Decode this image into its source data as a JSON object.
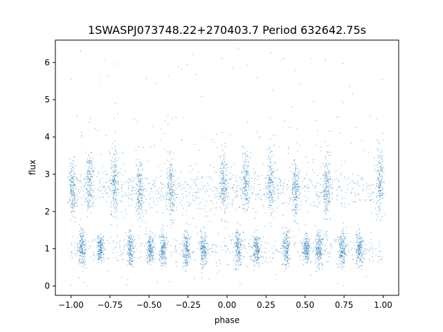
{
  "chart_data": {
    "type": "scatter",
    "title": "1SWASPJ073748.22+270403.7 Period 632642.75s",
    "xlabel": "phase",
    "ylabel": "flux",
    "xlim": [
      -1.1,
      1.1
    ],
    "ylim": [
      -0.25,
      6.6
    ],
    "x_ticks": [
      -1.0,
      -0.75,
      -0.5,
      -0.25,
      0.0,
      0.25,
      0.5,
      0.75,
      1.0
    ],
    "x_tick_labels": [
      "−1.00",
      "−0.75",
      "−0.50",
      "−0.25",
      "0.00",
      "0.25",
      "0.50",
      "0.75",
      "1.00"
    ],
    "y_ticks": [
      0,
      1,
      2,
      3,
      4,
      5,
      6
    ],
    "y_tick_labels": [
      "0",
      "1",
      "2",
      "3",
      "4",
      "5",
      "6"
    ],
    "grid": false,
    "legend": "none",
    "marker_color": "#1f77b4",
    "marker": "point",
    "phase_range": [
      -1.0,
      1.0
    ],
    "note_symmetry": "second half repeats first half shifted by 1.0 in phase",
    "series": [
      {
        "name": "",
        "clusters": [
          {
            "x": -0.99,
            "y": 2.6,
            "spread_y": 0.35
          },
          {
            "x": -0.93,
            "y": 1.0,
            "spread_y": 0.25
          },
          {
            "x": -0.88,
            "y": 2.8,
            "spread_y": 0.4
          },
          {
            "x": -0.81,
            "y": 1.0,
            "spread_y": 0.2
          },
          {
            "x": -0.72,
            "y": 2.8,
            "spread_y": 0.45
          },
          {
            "x": -0.62,
            "y": 1.0,
            "spread_y": 0.25
          },
          {
            "x": -0.56,
            "y": 2.6,
            "spread_y": 0.4
          },
          {
            "x": -0.49,
            "y": 1.0,
            "spread_y": 0.2
          },
          {
            "x": -0.41,
            "y": 1.0,
            "spread_y": 0.25
          },
          {
            "x": -0.36,
            "y": 2.6,
            "spread_y": 0.45
          },
          {
            "x": -0.26,
            "y": 1.0,
            "spread_y": 0.25
          },
          {
            "x": -0.15,
            "y": 1.0,
            "spread_y": 0.25
          },
          {
            "x": -0.02,
            "y": 2.8,
            "spread_y": 0.45
          },
          {
            "x": 0.07,
            "y": 1.0,
            "spread_y": 0.25
          },
          {
            "x": 0.12,
            "y": 2.8,
            "spread_y": 0.4
          },
          {
            "x": 0.19,
            "y": 1.0,
            "spread_y": 0.2
          },
          {
            "x": 0.28,
            "y": 2.8,
            "spread_y": 0.45
          },
          {
            "x": 0.38,
            "y": 1.0,
            "spread_y": 0.25
          },
          {
            "x": 0.44,
            "y": 2.6,
            "spread_y": 0.4
          },
          {
            "x": 0.51,
            "y": 1.0,
            "spread_y": 0.2
          },
          {
            "x": 0.59,
            "y": 1.0,
            "spread_y": 0.25
          },
          {
            "x": 0.64,
            "y": 2.6,
            "spread_y": 0.45
          },
          {
            "x": 0.74,
            "y": 1.0,
            "spread_y": 0.25
          },
          {
            "x": 0.85,
            "y": 1.0,
            "spread_y": 0.25
          },
          {
            "x": 0.98,
            "y": 2.8,
            "spread_y": 0.45
          }
        ],
        "points": []
      }
    ]
  }
}
